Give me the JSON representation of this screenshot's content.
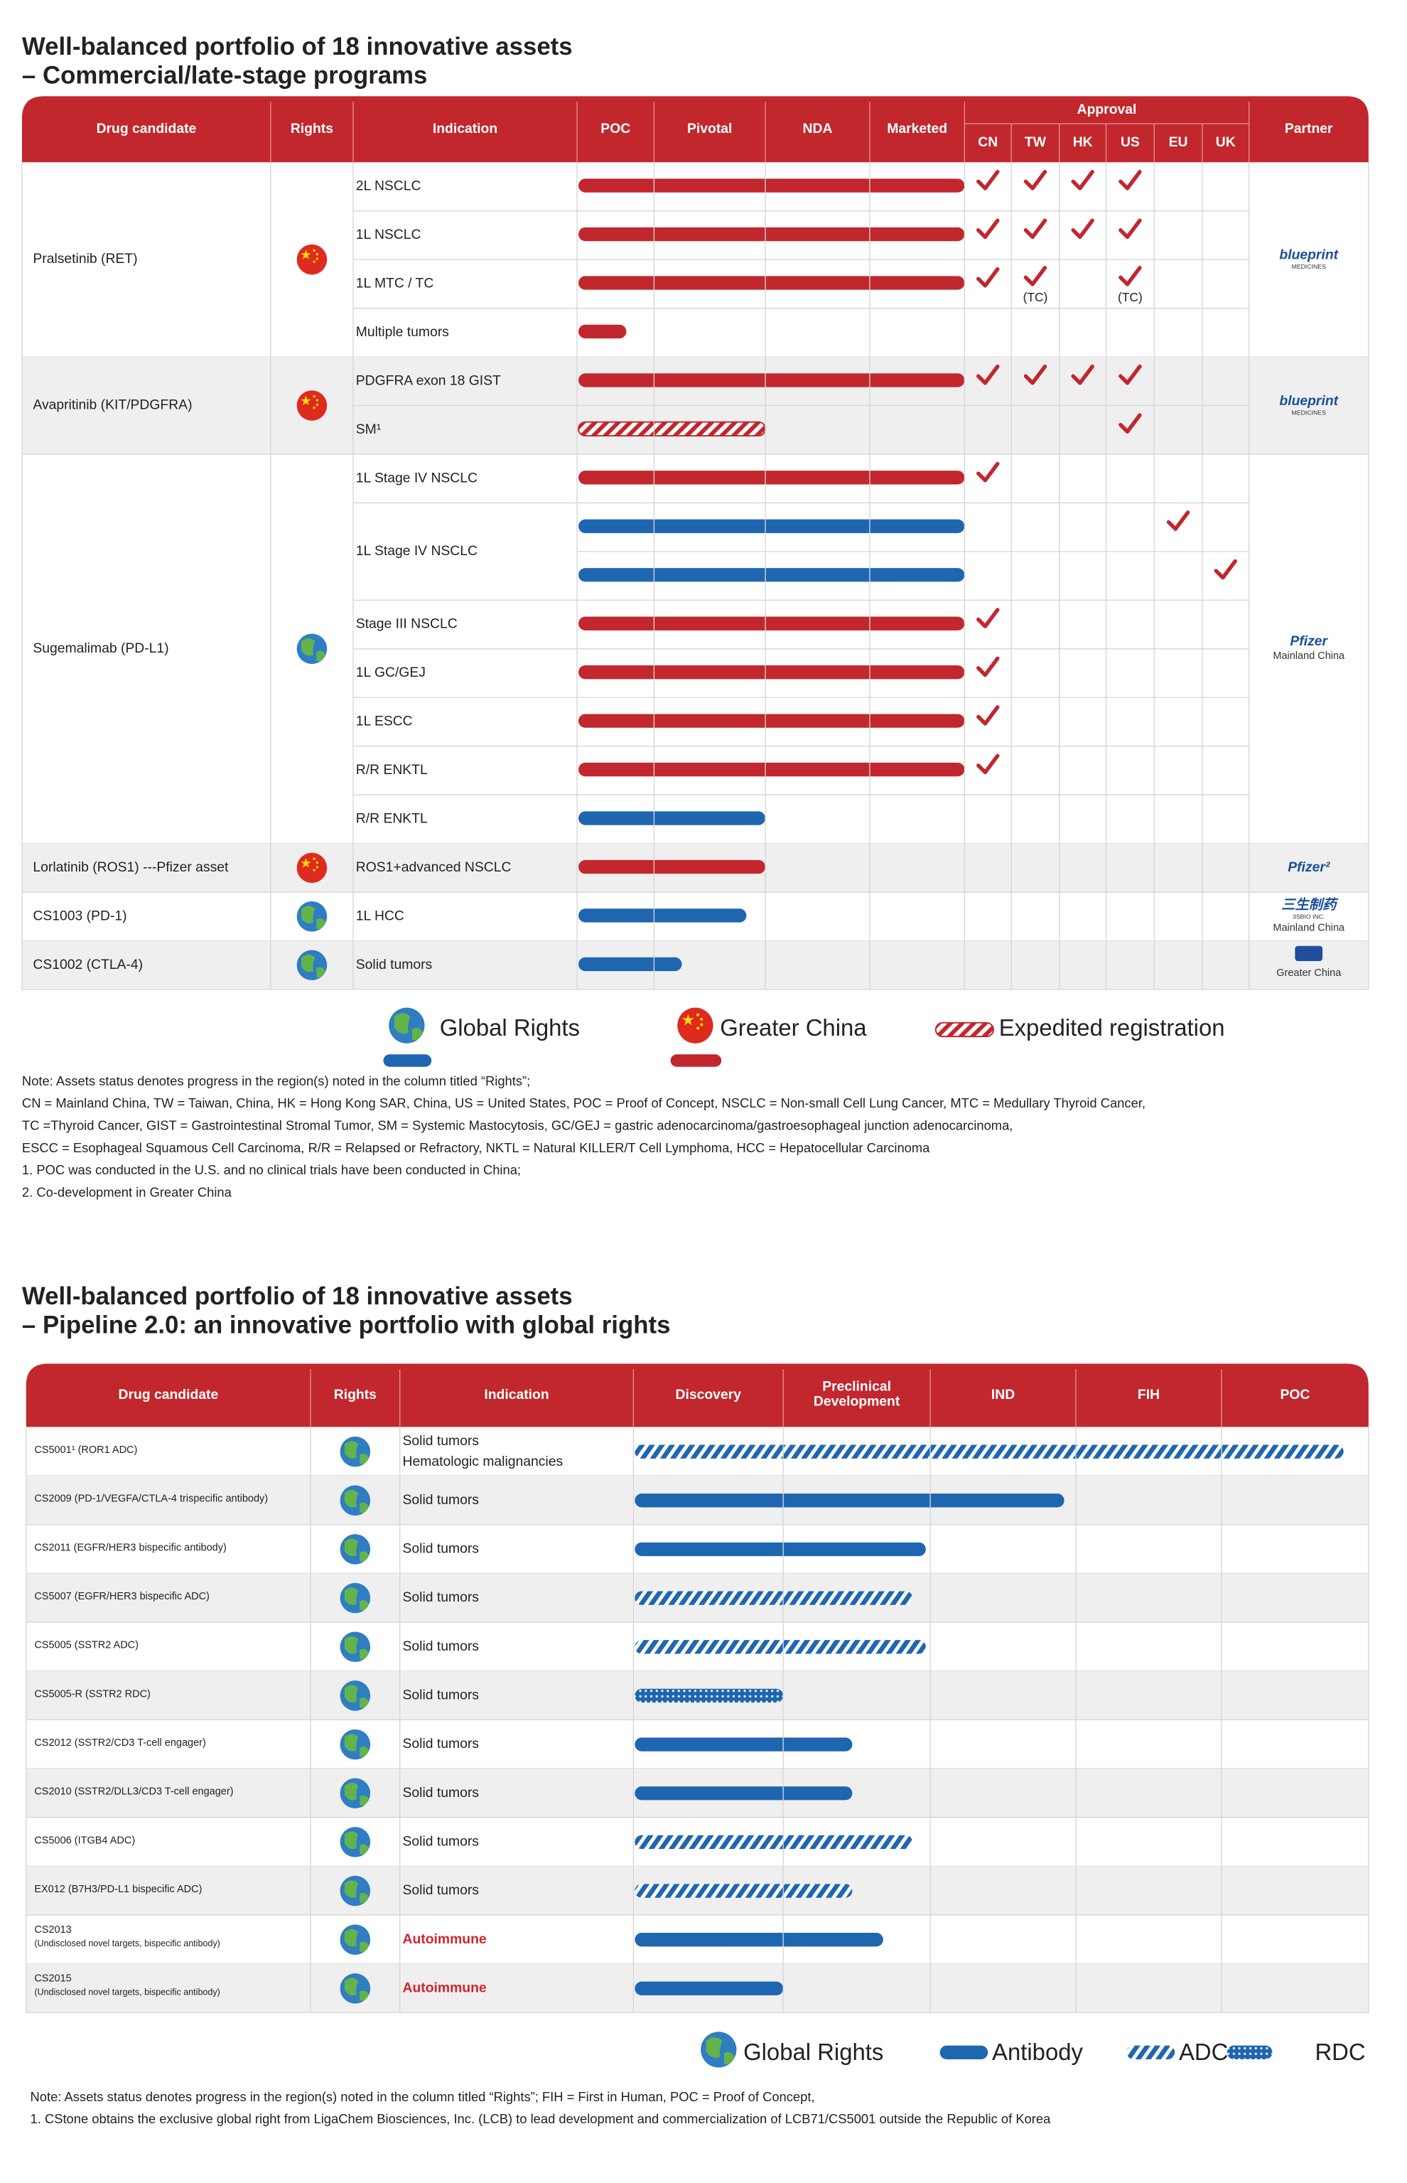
{
  "titles": {
    "top": [
      "Well-balanced portfolio of 18 innovative assets",
      "– Commercial/late-stage programs"
    ],
    "bottom": [
      "Well-balanced portfolio of 18 innovative assets",
      "– Pipeline 2.0: an innovative portfolio with global rights"
    ]
  },
  "table1": {
    "header": [
      "Drug candidate",
      "Rights",
      "Indication",
      "POC",
      "Pivotal",
      "NDA",
      "Marketed"
    ],
    "approval_title": "Approval",
    "approval_cols": [
      "CN",
      "TW",
      "HK",
      "US",
      "EU",
      "UK"
    ],
    "partner_header": "Partner",
    "groups": [
      {
        "drug": "Pralsetinib (RET)",
        "rights": "china",
        "partner": {
          "name": "blueprint",
          "sub": "MEDICINES"
        },
        "rows": [
          {
            "indication": "2L NSCLC",
            "lanes": [
              {
                "bar": {
                  "progress": 4,
                  "style": "red"
                },
                "approvals": [
                  true,
                  true,
                  true,
                  true,
                  null,
                  null
                ]
              }
            ]
          },
          {
            "indication": "1L NSCLC",
            "lanes": [
              {
                "bar": {
                  "progress": 4,
                  "style": "red"
                },
                "approvals": [
                  true,
                  true,
                  true,
                  true,
                  null,
                  null
                ]
              }
            ]
          },
          {
            "indication": "1L MTC / TC",
            "lanes": [
              {
                "bar": {
                  "progress": 4,
                  "style": "red"
                },
                "approvals": [
                  true,
                  "(TC)",
                  null,
                  "(TC)",
                  null,
                  null
                ]
              }
            ]
          },
          {
            "indication": "Multiple tumors",
            "lanes": [
              {
                "bar": {
                  "progress": 0.64,
                  "style": "red"
                }
              }
            ]
          }
        ]
      },
      {
        "drug": "Avapritinib (KIT/PDGFRA)",
        "rights": "china",
        "partner": {
          "name": "blueprint",
          "sub": "MEDICINES"
        },
        "rows": [
          {
            "indication": "PDGFRA exon 18 GIST",
            "lanes": [
              {
                "bar": {
                  "progress": 4,
                  "style": "red"
                },
                "approvals": [
                  true,
                  true,
                  true,
                  true,
                  null,
                  null
                ]
              }
            ]
          },
          {
            "indication": "SM¹",
            "lanes": [
              {
                "bar": {
                  "progress": 2,
                  "style": "expedited"
                },
                "approvals": [
                  null,
                  null,
                  null,
                  true,
                  null,
                  null
                ]
              }
            ]
          }
        ]
      },
      {
        "drug": "Sugemalimab (PD-L1)",
        "rights": "global",
        "partner": {
          "name": "Pfizer",
          "region": "Mainland China"
        },
        "rows": [
          {
            "indication": "1L Stage IV NSCLC",
            "lanes": [
              {
                "bar": {
                  "progress": 4,
                  "style": "red"
                },
                "approvals": [
                  true,
                  null,
                  null,
                  null,
                  null,
                  null
                ]
              }
            ]
          },
          {
            "indication": "1L Stage IV NSCLC",
            "lanes": [
              {
                "bar": {
                  "progress": 4,
                  "style": "blue"
                },
                "approvals": [
                  null,
                  null,
                  null,
                  null,
                  true,
                  null
                ]
              },
              {
                "bar": {
                  "progress": 4,
                  "style": "blue"
                },
                "approvals": [
                  null,
                  null,
                  null,
                  null,
                  null,
                  true
                ]
              }
            ]
          },
          {
            "indication": "Stage III NSCLC",
            "lanes": [
              {
                "bar": {
                  "progress": 4,
                  "style": "red"
                },
                "approvals": [
                  true,
                  null,
                  null,
                  null,
                  null,
                  null
                ]
              }
            ]
          },
          {
            "indication": "1L GC/GEJ",
            "lanes": [
              {
                "bar": {
                  "progress": 4,
                  "style": "red"
                },
                "approvals": [
                  true,
                  null,
                  null,
                  null,
                  null,
                  null
                ]
              }
            ]
          },
          {
            "indication": "1L ESCC",
            "lanes": [
              {
                "bar": {
                  "progress": 4,
                  "style": "red"
                },
                "approvals": [
                  true,
                  null,
                  null,
                  null,
                  null,
                  null
                ]
              }
            ]
          },
          {
            "indication": "R/R ENKTL",
            "lanes": [
              {
                "bar": {
                  "progress": 4,
                  "style": "red"
                },
                "approvals": [
                  true,
                  null,
                  null,
                  null,
                  null,
                  null
                ]
              }
            ]
          },
          {
            "indication": "R/R ENKTL",
            "lanes": [
              {
                "bar": {
                  "progress": 2,
                  "style": "blue"
                }
              }
            ]
          }
        ]
      },
      {
        "drug": "Lorlatinib (ROS1) ---Pfizer asset",
        "rights": "china",
        "partner": {
          "name": "Pfizer²"
        },
        "rows": [
          {
            "indication": "ROS1+advanced NSCLC",
            "lanes": [
              {
                "bar": {
                  "progress": 2,
                  "style": "red"
                }
              }
            ]
          }
        ]
      },
      {
        "drug": "CS1003 (PD-1)",
        "rights": "global",
        "partner": {
          "name": "三生制药",
          "sub": "3SBIO INC.",
          "region": "Mainland China"
        },
        "rows": [
          {
            "indication": "1L HCC",
            "lanes": [
              {
                "bar": {
                  "progress": 1.83,
                  "style": "blue"
                }
              }
            ]
          }
        ]
      },
      {
        "drug": "CS1002 (CTLA-4)",
        "rights": "global",
        "partner": {
          "region": "Greater China"
        },
        "rows": [
          {
            "indication": "Solid  tumors",
            "lanes": [
              {
                "bar": {
                  "progress": 1.25,
                  "style": "blue"
                }
              }
            ]
          }
        ]
      }
    ]
  },
  "legend1": {
    "global": "Global Rights",
    "china": "Greater China",
    "expedited": "Expedited registration"
  },
  "notes1": [
    "Note: Assets status denotes progress in the region(s) noted in the column titled “Rights”;",
    "CN = Mainland China, TW = Taiwan, China, HK = Hong Kong SAR, China, US = United States, POC = Proof of Concept, NSCLC = Non-small Cell Lung Cancer, MTC = Medullary Thyroid Cancer,",
    "TC =Thyroid Cancer, GIST = Gastrointestinal Stromal Tumor, SM = Systemic Mastocytosis, GC/GEJ = gastric adenocarcinoma/gastroesophageal junction adenocarcinoma,",
    "ESCC = Esophageal Squamous Cell Carcinoma, R/R = Relapsed or Refractory, NKTL = Natural KILLER/T Cell Lymphoma, HCC = Hepatocellular Carcinoma",
    "1. POC was conducted in the U.S. and no clinical trials have been conducted in China;",
    "2. Co-development in Greater China"
  ],
  "table2": {
    "header": [
      "Drug  candidate",
      "Rights",
      "Indication",
      "Discovery",
      [
        "Preclinical",
        "Development"
      ],
      "IND",
      "FIH",
      "POC"
    ],
    "rows": [
      {
        "drug": "CS5001¹ (ROR1 ADC)",
        "rights": "global",
        "indication": [
          "Solid tumors",
          "Hematologic malignancies"
        ],
        "bar": {
          "progress": 4.83,
          "style": "adc"
        }
      },
      {
        "drug": "CS2009 (PD-1/VEGFA/CTLA-4 trispecific antibody)",
        "rights": "global",
        "indication": [
          "Solid tumors"
        ],
        "bar": {
          "progress": 2.92,
          "style": "antibody"
        }
      },
      {
        "drug": "CS2011 (EGFR/HER3 bispecific antibody)",
        "rights": "global",
        "indication": [
          "Solid tumors"
        ],
        "bar": {
          "progress": 1.97,
          "style": "antibody"
        }
      },
      {
        "drug": "CS5007 (EGFR/HER3 bispecific ADC)",
        "rights": "global",
        "indication": [
          "Solid tumors"
        ],
        "bar": {
          "progress": 1.88,
          "style": "adc"
        }
      },
      {
        "drug": "CS5005 (SSTR2 ADC)",
        "rights": "global",
        "indication": [
          "Solid tumors"
        ],
        "bar": {
          "progress": 1.97,
          "style": "adc"
        }
      },
      {
        "drug": "CS5005-R (SSTR2 RDC)",
        "rights": "global",
        "indication": [
          "Solid tumors"
        ],
        "bar": {
          "progress": 1.0,
          "style": "rdc"
        }
      },
      {
        "drug": "CS2012 (SSTR2/CD3 T-cell engager)",
        "rights": "global",
        "indication": [
          "Solid tumors"
        ],
        "bar": {
          "progress": 1.47,
          "style": "antibody"
        }
      },
      {
        "drug": "CS2010 (SSTR2/DLL3/CD3 T-cell engager)",
        "rights": "global",
        "indication": [
          "Solid tumors"
        ],
        "bar": {
          "progress": 1.47,
          "style": "antibody"
        }
      },
      {
        "drug": "CS5006 (ITGB4 ADC)",
        "rights": "global",
        "indication": [
          "Solid tumors"
        ],
        "bar": {
          "progress": 1.88,
          "style": "adc"
        }
      },
      {
        "drug": "EX012 (B7H3/PD-L1 bispecific  ADC)",
        "rights": "global",
        "indication": [
          "Solid tumors"
        ],
        "bar": {
          "progress": 1.47,
          "style": "adc"
        }
      },
      {
        "drug": "CS2013",
        "drug_note": "(Undisclosed novel targets, bispecific antibody)",
        "rights": "global",
        "indication": [
          "Autoimmune"
        ],
        "indication_color": "#d0252d",
        "bar": {
          "progress": 1.68,
          "style": "antibody"
        }
      },
      {
        "drug": "CS2015",
        "drug_note": "(Undisclosed novel targets, bispecific antibody)",
        "rights": "global",
        "indication": [
          "Autoimmune"
        ],
        "indication_color": "#d0252d",
        "bar": {
          "progress": 1.0,
          "style": "antibody"
        }
      }
    ]
  },
  "legend2": {
    "global": "Global Rights",
    "antibody": "Antibody",
    "adc": "ADC",
    "rdc": "RDC"
  },
  "notes2": [
    "Note: Assets status denotes progress in the region(s) noted in the column titled “Rights”; FIH = First in Human, POC = Proof of Concept,",
    "1. CStone obtains the exclusive global right from LigaChem Biosciences, Inc. (LCB) to lead development and commercialization of LCB71/CS5001 outside the Republic of Korea"
  ]
}
